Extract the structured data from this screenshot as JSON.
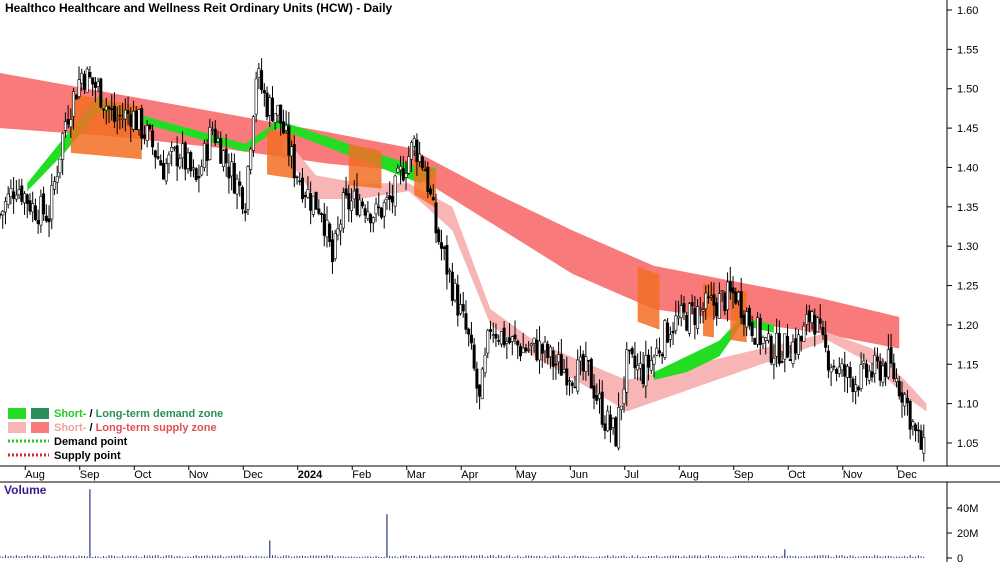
{
  "chart_data": {
    "type": "candlestick",
    "title": "Healthco Healthcare and Wellness Reit Ordinary Units (HCW) - Daily",
    "y_ticks": [
      "1.60",
      "1.55",
      "1.50",
      "1.45",
      "1.40",
      "1.35",
      "1.30",
      "1.25",
      "1.20",
      "1.15",
      "1.10",
      "1.05"
    ],
    "ylim": [
      1.02,
      1.62
    ],
    "x_labels": [
      {
        "label": "Aug",
        "pos": 0.5
      },
      {
        "label": "Sep",
        "pos": 1.5
      },
      {
        "label": "Oct",
        "pos": 2.5
      },
      {
        "label": "Nov",
        "pos": 3.5
      },
      {
        "label": "Dec",
        "pos": 4.5
      },
      {
        "label": "2024",
        "pos": 5.5
      },
      {
        "label": "Feb",
        "pos": 6.5
      },
      {
        "label": "Mar",
        "pos": 7.5
      },
      {
        "label": "Apr",
        "pos": 8.5
      },
      {
        "label": "May",
        "pos": 9.5
      },
      {
        "label": "Jun",
        "pos": 10.5
      },
      {
        "label": "Jul",
        "pos": 11.5
      },
      {
        "label": "Aug",
        "pos": 12.5
      },
      {
        "label": "Sep",
        "pos": 13.5
      },
      {
        "label": "Oct",
        "pos": 14.5
      },
      {
        "label": "Nov",
        "pos": 15.5
      },
      {
        "label": "Dec",
        "pos": 16.5
      }
    ],
    "close_path": [
      [
        0,
        1.34
      ],
      [
        0.3,
        1.38
      ],
      [
        0.6,
        1.35
      ],
      [
        0.9,
        1.34
      ],
      [
        1.2,
        1.46
      ],
      [
        1.5,
        1.52
      ],
      [
        1.8,
        1.5
      ],
      [
        2.1,
        1.46
      ],
      [
        2.4,
        1.47
      ],
      [
        2.7,
        1.44
      ],
      [
        3.0,
        1.4
      ],
      [
        3.3,
        1.42
      ],
      [
        3.6,
        1.38
      ],
      [
        3.9,
        1.45
      ],
      [
        4.2,
        1.4
      ],
      [
        4.5,
        1.36
      ],
      [
        4.7,
        1.52
      ],
      [
        4.9,
        1.48
      ],
      [
        5.1,
        1.47
      ],
      [
        5.4,
        1.4
      ],
      [
        5.7,
        1.36
      ],
      [
        5.9,
        1.35
      ],
      [
        6.1,
        1.28
      ],
      [
        6.3,
        1.35
      ],
      [
        6.6,
        1.36
      ],
      [
        6.9,
        1.34
      ],
      [
        7.2,
        1.36
      ],
      [
        7.4,
        1.4
      ],
      [
        7.6,
        1.43
      ],
      [
        7.8,
        1.4
      ],
      [
        8.0,
        1.32
      ],
      [
        8.3,
        1.25
      ],
      [
        8.6,
        1.18
      ],
      [
        8.8,
        1.1
      ],
      [
        9.0,
        1.2
      ],
      [
        9.3,
        1.18
      ],
      [
        9.6,
        1.17
      ],
      [
        9.9,
        1.17
      ],
      [
        10.2,
        1.15
      ],
      [
        10.5,
        1.14
      ],
      [
        10.8,
        1.14
      ],
      [
        11.1,
        1.08
      ],
      [
        11.3,
        1.06
      ],
      [
        11.5,
        1.15
      ],
      [
        11.8,
        1.14
      ],
      [
        12.0,
        1.16
      ],
      [
        12.3,
        1.2
      ],
      [
        12.6,
        1.21
      ],
      [
        12.9,
        1.22
      ],
      [
        13.2,
        1.23
      ],
      [
        13.5,
        1.24
      ],
      [
        13.8,
        1.2
      ],
      [
        14.1,
        1.17
      ],
      [
        14.4,
        1.17
      ],
      [
        14.7,
        1.18
      ],
      [
        14.9,
        1.22
      ],
      [
        15.1,
        1.17
      ],
      [
        15.4,
        1.14
      ],
      [
        15.7,
        1.13
      ],
      [
        16.0,
        1.14
      ],
      [
        16.3,
        1.15
      ],
      [
        16.6,
        1.11
      ],
      [
        16.8,
        1.06
      ],
      [
        17.0,
        1.03
      ]
    ],
    "supply_band_upper": [
      [
        0,
        1.52
      ],
      [
        2,
        1.495
      ],
      [
        4,
        1.47
      ],
      [
        6,
        1.445
      ],
      [
        7.5,
        1.425
      ],
      [
        9,
        1.37
      ],
      [
        10.5,
        1.32
      ],
      [
        12,
        1.275
      ],
      [
        13.5,
        1.255
      ],
      [
        15,
        1.235
      ],
      [
        16.5,
        1.21
      ]
    ],
    "supply_band_lower": [
      [
        0,
        1.45
      ],
      [
        2,
        1.44
      ],
      [
        4,
        1.425
      ],
      [
        6,
        1.405
      ],
      [
        7.5,
        1.395
      ],
      [
        9,
        1.33
      ],
      [
        10.5,
        1.265
      ],
      [
        12,
        1.22
      ],
      [
        13.5,
        1.205
      ],
      [
        15,
        1.19
      ],
      [
        16.5,
        1.17
      ]
    ],
    "short_supply_upper": [
      [
        5.2,
        1.44
      ],
      [
        5.8,
        1.39
      ],
      [
        6.6,
        1.38
      ],
      [
        7.5,
        1.38
      ],
      [
        8.3,
        1.35
      ],
      [
        9,
        1.22
      ],
      [
        9.8,
        1.18
      ],
      [
        10.8,
        1.15
      ],
      [
        11.5,
        1.13
      ],
      [
        15.2,
        1.19
      ],
      [
        16.0,
        1.17
      ],
      [
        16.6,
        1.13
      ],
      [
        17.0,
        1.1
      ]
    ],
    "short_supply_lower": [
      [
        5.2,
        1.42
      ],
      [
        5.8,
        1.36
      ],
      [
        6.6,
        1.36
      ],
      [
        7.5,
        1.37
      ],
      [
        8.3,
        1.32
      ],
      [
        9,
        1.2
      ],
      [
        9.8,
        1.16
      ],
      [
        10.8,
        1.12
      ],
      [
        11.5,
        1.09
      ],
      [
        15.2,
        1.18
      ],
      [
        16.0,
        1.15
      ],
      [
        16.6,
        1.11
      ],
      [
        17.0,
        1.09
      ]
    ],
    "short_demand_upper": [
      [
        0.5,
        1.38
      ],
      [
        1.2,
        1.44
      ],
      [
        1.8,
        1.49
      ],
      [
        2.4,
        1.47
      ],
      [
        4.5,
        1.43
      ],
      [
        5.1,
        1.46
      ],
      [
        7.7,
        1.4
      ],
      [
        8.0,
        1.4
      ]
    ],
    "short_demand_lower": [
      [
        0.5,
        1.37
      ],
      [
        1.2,
        1.42
      ],
      [
        1.8,
        1.47
      ],
      [
        2.4,
        1.46
      ],
      [
        4.5,
        1.42
      ],
      [
        5.1,
        1.45
      ],
      [
        7.7,
        1.38
      ],
      [
        8.0,
        1.39
      ]
    ],
    "demand2_upper": [
      [
        12.0,
        1.14
      ],
      [
        12.6,
        1.16
      ],
      [
        13.2,
        1.18
      ],
      [
        13.6,
        1.21
      ],
      [
        14.2,
        1.2
      ]
    ],
    "demand2_lower": [
      [
        12.0,
        1.13
      ],
      [
        12.6,
        1.14
      ],
      [
        13.2,
        1.16
      ],
      [
        13.6,
        1.2
      ],
      [
        14.2,
        1.19
      ]
    ],
    "volume_ticks": [
      "40M",
      "20M",
      "0"
    ],
    "volume_spikes": [
      {
        "pos": 1.65,
        "v": 55
      },
      {
        "pos": 4.95,
        "v": 14
      },
      {
        "pos": 7.1,
        "v": 35
      },
      {
        "pos": 14.4,
        "v": 7
      }
    ],
    "legend": {
      "demand_label_short": "Short-",
      "demand_sep": " / ",
      "demand_label_long": "Long-term demand zone",
      "supply_label_short": "Short-",
      "supply_sep": " / ",
      "supply_label_long": "Long-term supply zone",
      "demand_point": "Demand point",
      "supply_point": "Supply point"
    },
    "volume_title": "Volume",
    "colors": {
      "supply_long": "#f97a7a",
      "supply_short": "#f7b5b5",
      "overlap_orange": "#f36f23",
      "demand_short": "#22dd22",
      "demand_long": "#2a8f5a",
      "demand_point": "#22cc22",
      "supply_point": "#dd2222"
    }
  }
}
